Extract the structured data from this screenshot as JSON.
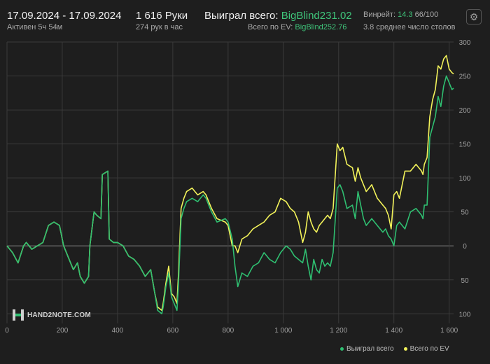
{
  "header": {
    "date_range": "17.09.2024 - 17.09.2024",
    "active": "Активен 5ч 54м",
    "hands": "1 616 Руки",
    "hands_per_hour": "274 рук в час",
    "won_label": "Выиграл всего:",
    "won_value": "BigBlind231.02",
    "ev_label": "Всего по EV:",
    "ev_value": "BigBlind252.76",
    "winrate_label": "Винрейт:",
    "winrate_value": "14.3",
    "winrate_rest": "66/100",
    "tables_text": "3.8 среднее число столов"
  },
  "logo": {
    "text": "HAND2NOTE.COM"
  },
  "legend": {
    "won": "Выиграл всего",
    "ev": "Всего по EV"
  },
  "colors": {
    "won": "#2fbf71",
    "ev": "#f2f25a",
    "bg": "#1e1e1e",
    "grid": "#3a3a3a"
  },
  "icons": {
    "settings": "gear-icon",
    "logo": "hand2note-logo-icon"
  },
  "chart_data": {
    "type": "line",
    "xlabel": "",
    "ylabel": "",
    "xlim": [
      0,
      1616
    ],
    "ylim": [
      -110,
      300
    ],
    "x_ticks": [
      0,
      200,
      400,
      600,
      800,
      1000,
      1200,
      1400,
      1600
    ],
    "x_tick_labels": [
      "0",
      "200",
      "400",
      "600",
      "800",
      "1 000",
      "1 200",
      "1 400",
      "1 600"
    ],
    "y_ticks": [
      300,
      250,
      200,
      150,
      100,
      50,
      0,
      -50,
      -100
    ],
    "y_tick_labels": [
      "300",
      "250",
      "200",
      "150",
      "100",
      "50",
      "0",
      "50",
      "100"
    ],
    "grid": true,
    "legend_position": "bottom-right",
    "series": [
      {
        "name": "Выиграл всего",
        "x": [
          0,
          20,
          40,
          60,
          70,
          90,
          110,
          130,
          150,
          170,
          190,
          205,
          225,
          240,
          255,
          265,
          280,
          295,
          300,
          315,
          325,
          340,
          345,
          365,
          370,
          385,
          400,
          420,
          440,
          460,
          480,
          500,
          520,
          535,
          545,
          560,
          565,
          575,
          585,
          595,
          605,
          615,
          620,
          630,
          640,
          650,
          670,
          690,
          710,
          720,
          730,
          740,
          760,
          790,
          800,
          815,
          825,
          835,
          850,
          870,
          890,
          910,
          930,
          950,
          970,
          990,
          1010,
          1025,
          1040,
          1055,
          1070,
          1080,
          1090,
          1100,
          1110,
          1120,
          1130,
          1140,
          1150,
          1160,
          1170,
          1180,
          1195,
          1205,
          1215,
          1230,
          1250,
          1260,
          1270,
          1280,
          1290,
          1300,
          1320,
          1340,
          1360,
          1370,
          1380,
          1390,
          1400,
          1410,
          1420,
          1440,
          1460,
          1480,
          1500,
          1505,
          1510,
          1520,
          1530,
          1540,
          1550,
          1560,
          1570,
          1580,
          1590,
          1600,
          1610,
          1616
        ],
        "y": [
          0,
          -10,
          -25,
          0,
          5,
          -5,
          0,
          5,
          30,
          35,
          30,
          0,
          -20,
          -35,
          -25,
          -45,
          -55,
          -45,
          0,
          50,
          45,
          40,
          105,
          110,
          10,
          5,
          5,
          0,
          -15,
          -20,
          -30,
          -45,
          -35,
          -70,
          -95,
          -100,
          -90,
          -60,
          -40,
          -75,
          -85,
          -95,
          -60,
          40,
          55,
          65,
          70,
          65,
          75,
          70,
          60,
          50,
          35,
          40,
          35,
          10,
          -30,
          -60,
          -40,
          -45,
          -30,
          -25,
          -10,
          -20,
          -25,
          -10,
          0,
          -5,
          -15,
          -20,
          -25,
          -5,
          -30,
          -50,
          -20,
          -35,
          -40,
          -20,
          -30,
          -25,
          -30,
          -10,
          85,
          90,
          80,
          55,
          60,
          40,
          80,
          60,
          40,
          30,
          40,
          30,
          20,
          25,
          15,
          10,
          0,
          30,
          35,
          25,
          50,
          55,
          45,
          40,
          60,
          60,
          160,
          175,
          190,
          220,
          205,
          235,
          250,
          240,
          230,
          232
        ]
      },
      {
        "name": "Всего по EV",
        "x": [
          0,
          20,
          40,
          60,
          70,
          90,
          110,
          130,
          150,
          170,
          190,
          205,
          225,
          240,
          255,
          265,
          280,
          295,
          300,
          315,
          325,
          340,
          345,
          365,
          370,
          385,
          400,
          420,
          440,
          460,
          480,
          500,
          520,
          535,
          545,
          560,
          565,
          575,
          585,
          595,
          605,
          615,
          620,
          630,
          640,
          650,
          670,
          690,
          710,
          720,
          730,
          740,
          760,
          790,
          800,
          815,
          825,
          835,
          850,
          870,
          890,
          910,
          930,
          950,
          970,
          990,
          1010,
          1025,
          1040,
          1055,
          1070,
          1080,
          1090,
          1100,
          1110,
          1120,
          1130,
          1140,
          1150,
          1160,
          1170,
          1180,
          1195,
          1205,
          1215,
          1230,
          1250,
          1260,
          1270,
          1280,
          1290,
          1300,
          1320,
          1340,
          1360,
          1370,
          1380,
          1390,
          1400,
          1410,
          1420,
          1440,
          1460,
          1480,
          1500,
          1505,
          1510,
          1520,
          1530,
          1540,
          1550,
          1560,
          1570,
          1580,
          1590,
          1600,
          1610,
          1616
        ],
        "y": [
          0,
          -10,
          -25,
          0,
          5,
          -5,
          0,
          5,
          30,
          35,
          30,
          0,
          -20,
          -35,
          -25,
          -45,
          -55,
          -45,
          0,
          50,
          45,
          40,
          105,
          110,
          10,
          5,
          5,
          0,
          -15,
          -20,
          -30,
          -45,
          -35,
          -70,
          -90,
          -95,
          -85,
          -55,
          -30,
          -70,
          -75,
          -85,
          -45,
          55,
          70,
          80,
          85,
          75,
          80,
          75,
          65,
          55,
          40,
          35,
          30,
          0,
          0,
          -10,
          10,
          15,
          25,
          30,
          35,
          45,
          50,
          70,
          65,
          55,
          50,
          35,
          5,
          20,
          50,
          35,
          25,
          20,
          30,
          35,
          40,
          45,
          40,
          55,
          150,
          140,
          145,
          120,
          115,
          95,
          115,
          100,
          90,
          80,
          90,
          70,
          60,
          55,
          45,
          25,
          75,
          80,
          70,
          110,
          110,
          120,
          110,
          105,
          120,
          130,
          190,
          215,
          230,
          265,
          260,
          275,
          280,
          260,
          255,
          253
        ]
      }
    ]
  }
}
